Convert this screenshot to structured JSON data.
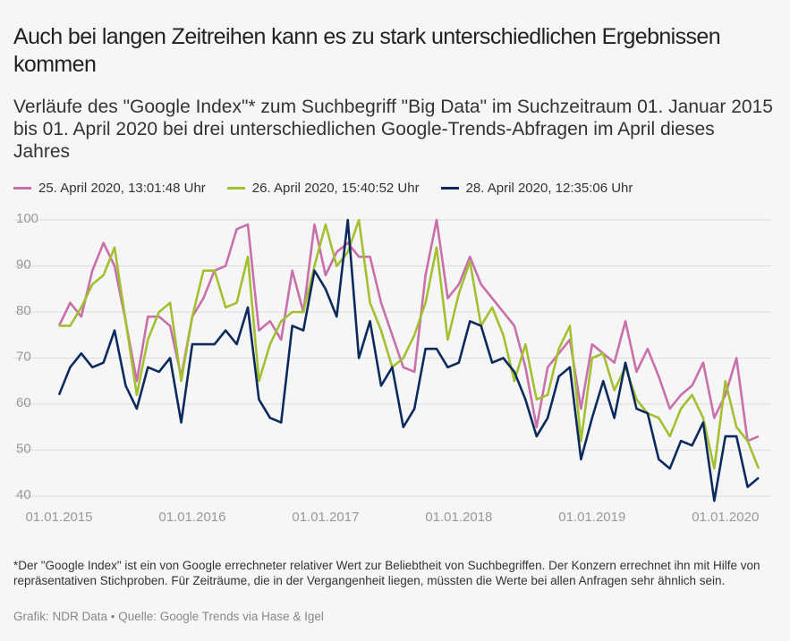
{
  "chart_data": {
    "type": "line",
    "title": "Auch bei langen Zeitreihen kann es zu stark unterschiedlichen Ergebnissen kommen",
    "subtitle": "Verläufe des \"Google Index\"* zum Suchbegriff \"Big Data\" im Suchzeitraum 01. Januar 2015 bis 01. April 2020 bei drei unterschiedlichen Google-Trends-Abfragen im April dieses Jahres",
    "footnote": "*Der \"Google Index\" ist ein von Google errechneter relativer Wert zur Beliebtheit von Suchbegriffen. Der Konzern errechnet ihn mit Hilfe von repräsentativen Stichproben. Für Zeiträume, die in der Vergangenheit liegen, müssten die Werte bei allen Anfragen sehr ähnlich sein.",
    "credit": "Grafik: NDR Data • Quelle: Google Trends via Hase & Igel",
    "x": [
      "01.01.2015",
      "01.02.2015",
      "01.03.2015",
      "01.04.2015",
      "01.05.2015",
      "01.06.2015",
      "01.07.2015",
      "01.08.2015",
      "01.09.2015",
      "01.10.2015",
      "01.11.2015",
      "01.12.2015",
      "01.01.2016",
      "01.02.2016",
      "01.03.2016",
      "01.04.2016",
      "01.05.2016",
      "01.06.2016",
      "01.07.2016",
      "01.08.2016",
      "01.09.2016",
      "01.10.2016",
      "01.11.2016",
      "01.12.2016",
      "01.01.2017",
      "01.02.2017",
      "01.03.2017",
      "01.04.2017",
      "01.05.2017",
      "01.06.2017",
      "01.07.2017",
      "01.08.2017",
      "01.09.2017",
      "01.10.2017",
      "01.11.2017",
      "01.12.2017",
      "01.01.2018",
      "01.02.2018",
      "01.03.2018",
      "01.04.2018",
      "01.05.2018",
      "01.06.2018",
      "01.07.2018",
      "01.08.2018",
      "01.09.2018",
      "01.10.2018",
      "01.11.2018",
      "01.12.2018",
      "01.01.2019",
      "01.02.2019",
      "01.03.2019",
      "01.04.2019",
      "01.05.2019",
      "01.06.2019",
      "01.07.2019",
      "01.08.2019",
      "01.09.2019",
      "01.10.2019",
      "01.11.2019",
      "01.12.2019",
      "01.01.2020",
      "01.02.2020",
      "01.03.2020",
      "01.04.2020"
    ],
    "series": [
      {
        "name": "25. April 2020, 13:01:48 Uhr",
        "color": "#c96fab",
        "values": [
          77,
          82,
          79,
          89,
          95,
          90,
          78,
          65,
          79,
          79,
          77,
          66,
          79,
          83,
          89,
          90,
          98,
          99,
          76,
          78,
          74,
          89,
          80,
          99,
          88,
          93,
          95,
          92,
          92,
          82,
          75,
          68,
          67,
          88,
          100,
          83,
          86,
          92,
          86,
          83,
          80,
          77,
          68,
          55,
          68,
          71,
          74,
          59,
          73,
          71,
          69,
          78,
          67,
          72,
          66,
          59,
          62,
          64,
          69,
          57,
          62,
          70,
          52,
          53
        ]
      },
      {
        "name": "26. April 2020, 15:40:52 Uhr",
        "color": "#a2c030",
        "values": [
          77,
          77,
          81,
          86,
          88,
          94,
          78,
          62,
          74,
          80,
          82,
          65,
          79,
          89,
          89,
          81,
          82,
          92,
          65,
          73,
          78,
          80,
          80,
          90,
          99,
          90,
          93,
          100,
          82,
          76,
          68,
          70,
          75,
          82,
          94,
          74,
          84,
          91,
          77,
          81,
          75,
          65,
          73,
          61,
          62,
          72,
          77,
          52,
          70,
          71,
          63,
          68,
          61,
          58,
          57,
          53,
          59,
          62,
          57,
          46,
          65,
          55,
          52,
          46
        ]
      },
      {
        "name": "28. April 2020, 12:35:06 Uhr",
        "color": "#0c2b5c",
        "values": [
          62,
          68,
          71,
          68,
          69,
          76,
          64,
          59,
          68,
          67,
          70,
          56,
          73,
          73,
          73,
          76,
          73,
          81,
          61,
          57,
          56,
          77,
          76,
          89,
          85,
          79,
          100,
          70,
          78,
          64,
          68,
          55,
          59,
          72,
          72,
          68,
          69,
          78,
          77,
          69,
          70,
          67,
          61,
          53,
          57,
          66,
          68,
          48,
          57,
          65,
          57,
          69,
          59,
          58,
          48,
          46,
          52,
          51,
          56,
          39,
          53,
          53,
          42,
          44
        ]
      }
    ],
    "xlim": [
      "01.01.2015",
      "01.04.2020"
    ],
    "xticks": [
      "01.01.2015",
      "01.01.2016",
      "01.01.2017",
      "01.01.2018",
      "01.01.2019",
      "01.01.2020"
    ],
    "ylim": [
      40,
      100
    ],
    "yticks": [
      40,
      50,
      60,
      70,
      80,
      90,
      100
    ],
    "grid": true
  }
}
